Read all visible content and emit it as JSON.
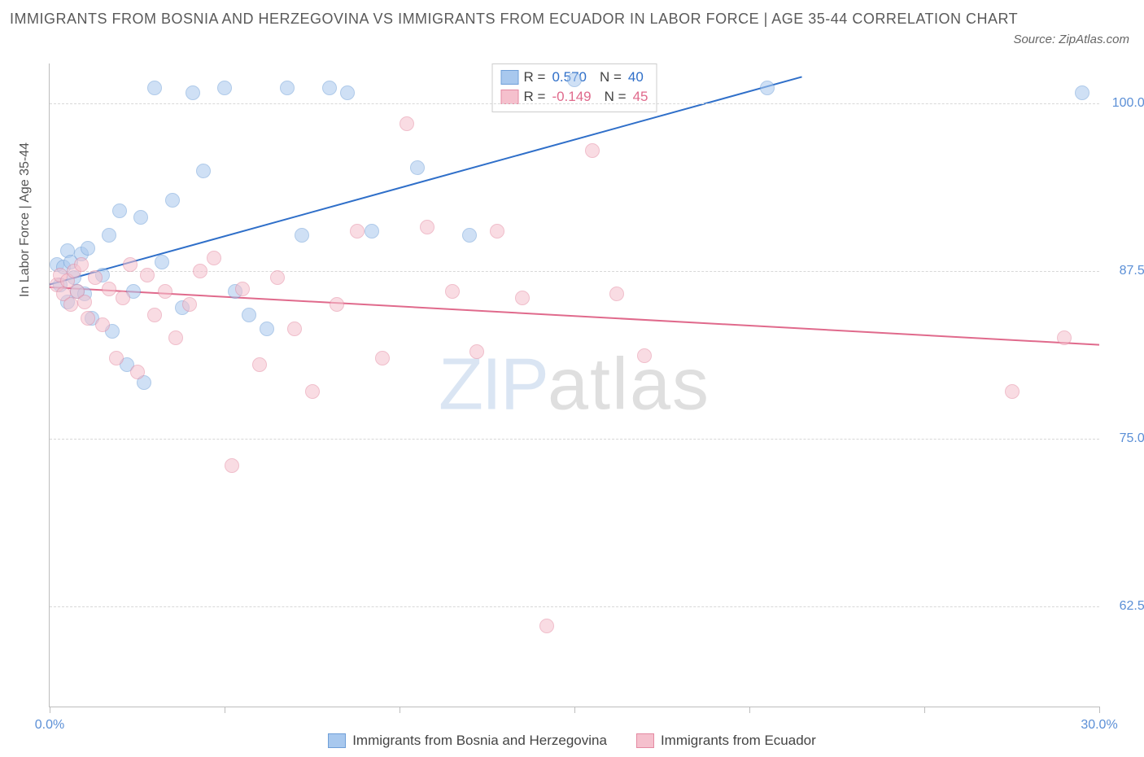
{
  "title": "IMMIGRANTS FROM BOSNIA AND HERZEGOVINA VS IMMIGRANTS FROM ECUADOR IN LABOR FORCE | AGE 35-44 CORRELATION CHART",
  "source": "Source: ZipAtlas.com",
  "watermark": {
    "part1": "ZIP",
    "part2": "atlas"
  },
  "chart": {
    "type": "scatter",
    "y_label": "In Labor Force | Age 35-44",
    "x_range": [
      0,
      30
    ],
    "y_range": [
      55,
      103
    ],
    "background_color": "#ffffff",
    "grid_color": "#d8d8d8",
    "axis_color": "#bdbdbd",
    "label_color": "#5b8fd6",
    "y_ticks": [
      62.5,
      75.0,
      87.5,
      100.0
    ],
    "y_tick_labels": [
      "62.5%",
      "75.0%",
      "87.5%",
      "100.0%"
    ],
    "x_ticks": [
      0,
      5,
      10,
      15,
      20,
      25,
      30
    ],
    "x_tick_labels_shown": {
      "0": "0.0%",
      "30": "30.0%"
    },
    "point_radius": 8,
    "point_opacity": 0.55,
    "series": [
      {
        "name": "Immigrants from Bosnia and Herzegovina",
        "color_fill": "#a8c8ee",
        "color_stroke": "#6f9fd8",
        "r_value": "0.570",
        "n_value": "40",
        "trend": {
          "x1": 0,
          "y1": 86.5,
          "x2": 21.5,
          "y2": 102.0,
          "color": "#2f6fc9",
          "width": 2
        },
        "points": [
          [
            0.2,
            88.0
          ],
          [
            0.3,
            86.5
          ],
          [
            0.4,
            87.8
          ],
          [
            0.5,
            89.0
          ],
          [
            0.5,
            85.2
          ],
          [
            0.6,
            88.2
          ],
          [
            0.7,
            87.0
          ],
          [
            0.8,
            86.0
          ],
          [
            0.9,
            88.8
          ],
          [
            1.0,
            85.8
          ],
          [
            1.1,
            89.2
          ],
          [
            1.2,
            84.0
          ],
          [
            1.5,
            87.2
          ],
          [
            1.7,
            90.2
          ],
          [
            1.8,
            83.0
          ],
          [
            2.0,
            92.0
          ],
          [
            2.2,
            80.5
          ],
          [
            2.4,
            86.0
          ],
          [
            2.6,
            91.5
          ],
          [
            2.7,
            79.2
          ],
          [
            3.0,
            101.2
          ],
          [
            3.2,
            88.2
          ],
          [
            3.5,
            92.8
          ],
          [
            3.8,
            84.8
          ],
          [
            4.1,
            100.8
          ],
          [
            4.4,
            95.0
          ],
          [
            5.0,
            101.2
          ],
          [
            5.3,
            86.0
          ],
          [
            5.7,
            84.2
          ],
          [
            6.2,
            83.2
          ],
          [
            6.8,
            101.2
          ],
          [
            7.2,
            90.2
          ],
          [
            8.0,
            101.2
          ],
          [
            8.5,
            100.8
          ],
          [
            9.2,
            90.5
          ],
          [
            10.5,
            95.2
          ],
          [
            12.0,
            90.2
          ],
          [
            15.0,
            101.8
          ],
          [
            20.5,
            101.2
          ],
          [
            29.5,
            100.8
          ]
        ]
      },
      {
        "name": "Immigrants from Ecuador",
        "color_fill": "#f5c0cd",
        "color_stroke": "#e48aa2",
        "r_value": "-0.149",
        "n_value": "45",
        "trend": {
          "x1": 0,
          "y1": 86.3,
          "x2": 30,
          "y2": 82.0,
          "color": "#e06a8c",
          "width": 2
        },
        "points": [
          [
            0.2,
            86.5
          ],
          [
            0.3,
            87.2
          ],
          [
            0.4,
            85.8
          ],
          [
            0.5,
            86.8
          ],
          [
            0.6,
            85.0
          ],
          [
            0.7,
            87.5
          ],
          [
            0.8,
            86.0
          ],
          [
            0.9,
            88.0
          ],
          [
            1.0,
            85.2
          ],
          [
            1.1,
            84.0
          ],
          [
            1.3,
            87.0
          ],
          [
            1.5,
            83.5
          ],
          [
            1.7,
            86.2
          ],
          [
            1.9,
            81.0
          ],
          [
            2.1,
            85.5
          ],
          [
            2.3,
            88.0
          ],
          [
            2.5,
            80.0
          ],
          [
            2.8,
            87.2
          ],
          [
            3.0,
            84.2
          ],
          [
            3.3,
            86.0
          ],
          [
            3.6,
            82.5
          ],
          [
            4.0,
            85.0
          ],
          [
            4.3,
            87.5
          ],
          [
            4.7,
            88.5
          ],
          [
            5.2,
            73.0
          ],
          [
            5.5,
            86.2
          ],
          [
            6.0,
            80.5
          ],
          [
            6.5,
            87.0
          ],
          [
            7.0,
            83.2
          ],
          [
            7.5,
            78.5
          ],
          [
            8.2,
            85.0
          ],
          [
            8.8,
            90.5
          ],
          [
            9.5,
            81.0
          ],
          [
            10.2,
            98.5
          ],
          [
            10.8,
            90.8
          ],
          [
            11.5,
            86.0
          ],
          [
            12.2,
            81.5
          ],
          [
            12.8,
            90.5
          ],
          [
            13.5,
            85.5
          ],
          [
            14.2,
            61.0
          ],
          [
            15.5,
            96.5
          ],
          [
            16.2,
            85.8
          ],
          [
            17.0,
            81.2
          ],
          [
            27.5,
            78.5
          ],
          [
            29.0,
            82.5
          ]
        ]
      }
    ],
    "legend_box": {
      "r_label": "R =",
      "n_label": "N ="
    },
    "bottom_legend_labels": [
      "Immigrants from Bosnia and Herzegovina",
      "Immigrants from Ecuador"
    ]
  }
}
